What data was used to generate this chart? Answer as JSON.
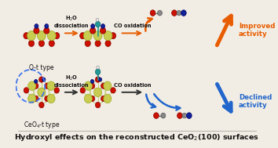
{
  "bg_color": "#f2ede4",
  "title_text": "Hydroxyl effects on the reconstructed CeO$_2$(100) surfaces",
  "top_label": "O-t type",
  "bottom_label": "CeO$_4$-t type",
  "h2o_label": "H$_2$O\ndissociation",
  "co_label": "CO oxidation",
  "improved_label": "Improved\nactivity",
  "declined_label": "Declined\nactivity",
  "arrow_orange": "#E85C00",
  "arrow_blue": "#2266CC",
  "text_orange": "#E85C00",
  "text_blue": "#2266CC",
  "text_black": "#111111",
  "dashed_circle_color": "#4477EE",
  "ce_color": "#c8cc50",
  "ce_edge": "#9aaa20",
  "o_color": "#cc1100",
  "o_edge": "#880000",
  "n_color": "#112299",
  "teal_color": "#229999",
  "white_color": "#e8e8e8",
  "bond_color": "#c0c870"
}
